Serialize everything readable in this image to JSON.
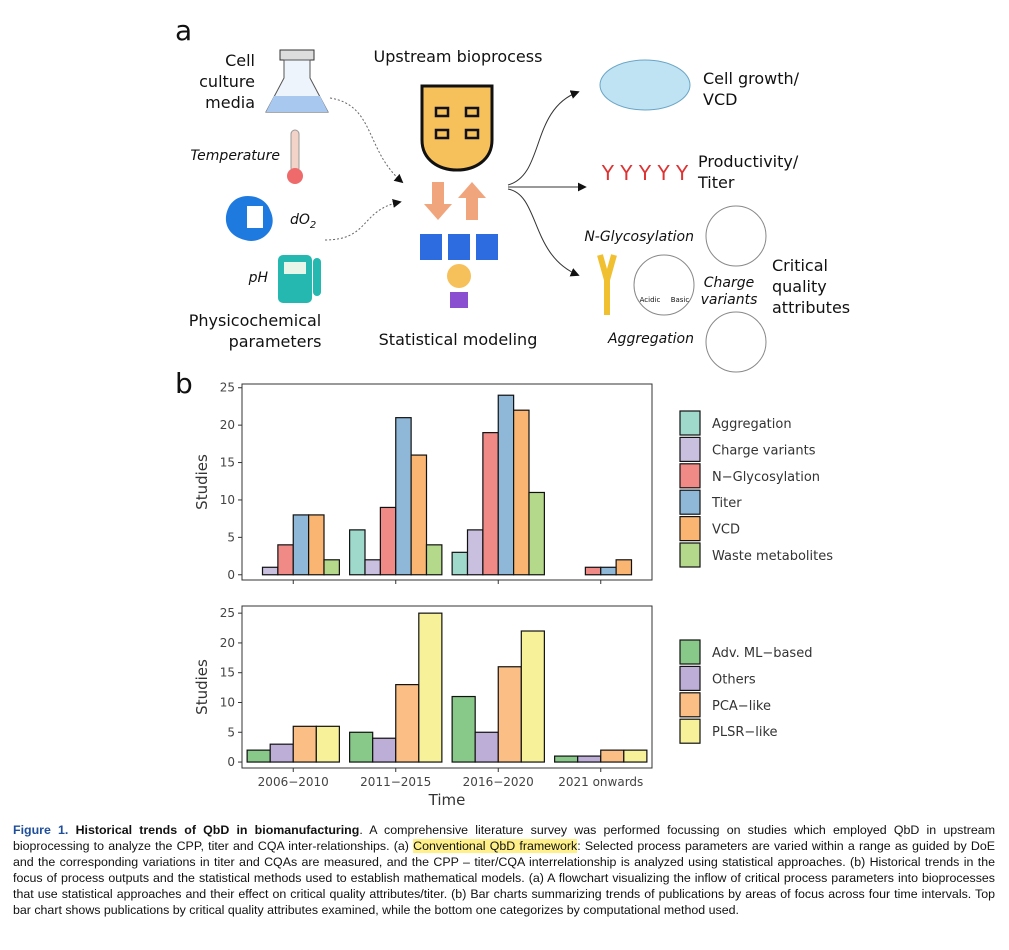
{
  "panel_a": {
    "label": "a",
    "media_lines": [
      "Cell",
      "culture",
      "media"
    ],
    "temperature": "Temperature",
    "do2": {
      "text": "dO",
      "sub": "2"
    },
    "ph": "pH",
    "physico_lines": [
      "Physicochemical",
      "parameters"
    ],
    "upstream": "Upstream bioprocess",
    "modeling": "Statistical modeling",
    "cell_growth_lines": [
      "Cell growth/",
      "VCD"
    ],
    "productivity_lines": [
      "Productivity/",
      "Titer"
    ],
    "glycosylation": "N-Glycosylation",
    "charge_lines": [
      "Charge",
      "variants"
    ],
    "aggregation": "Aggregation",
    "cqa_lines": [
      "Critical",
      "quality",
      "attributes"
    ],
    "acidic": "Acidic",
    "basic": "Basic"
  },
  "panel_b_label": "b",
  "chart_data": [
    {
      "type": "bar",
      "y_label": "Studies",
      "ylim": [
        -0.7,
        25.5
      ],
      "yticks": [
        0,
        5,
        10,
        15,
        20,
        25
      ],
      "series": [
        {
          "name": "Aggregation",
          "color": "#9fd9cc",
          "values": [
            0,
            6,
            3,
            0
          ]
        },
        {
          "name": "Charge variants",
          "color": "#c9bfdf",
          "values": [
            1,
            2,
            6,
            0
          ]
        },
        {
          "name": "N−Glycosylation",
          "color": "#f08a86",
          "values": [
            4,
            9,
            19,
            1
          ]
        },
        {
          "name": "Titer",
          "color": "#8fb8d8",
          "values": [
            8,
            21,
            24,
            1
          ]
        },
        {
          "name": "VCD",
          "color": "#f9b571",
          "values": [
            8,
            16,
            22,
            2
          ]
        },
        {
          "name": "Waste metabolites",
          "color": "#b5d98a",
          "values": [
            2,
            4,
            11,
            0
          ]
        }
      ]
    },
    {
      "type": "bar",
      "y_label": "Studies",
      "x_label": "Time",
      "ylim": [
        -1,
        26.2
      ],
      "yticks": [
        0,
        5,
        10,
        15,
        20,
        25
      ],
      "categories": [
        "2006−2010",
        "2011−2015",
        "2016−2020",
        "2021 onwards"
      ],
      "series": [
        {
          "name": "Adv. ML−based",
          "color": "#88c98a",
          "values": [
            2,
            5,
            11,
            1
          ]
        },
        {
          "name": "Others",
          "color": "#bcaed6",
          "values": [
            3,
            4,
            5,
            1
          ]
        },
        {
          "name": "PCA−like",
          "color": "#fbbf85",
          "values": [
            6,
            13,
            16,
            2
          ]
        },
        {
          "name": "PLSR−like",
          "color": "#f7f29a",
          "values": [
            6,
            25,
            22,
            2
          ]
        }
      ]
    }
  ],
  "caption": {
    "label": "Figure 1.",
    "title": "Historical trends of QbD in biomanufacturing",
    "text1": ". A comprehensive literature survey was performed focussing on studies which employed QbD in upstream bioprocessing to analyze the CPP, titer and CQA inter-relationships. (a) ",
    "highlight": "Conventional QbD framework",
    "text2": ": Selected process parameters are varied within a range as guided by DoE and the corresponding variations in titer and CQAs are measured, and the CPP – titer/CQA interrelationship is analyzed using statistical approaches. (b) Historical trends in the focus of process outputs and the statistical methods used to establish mathematical models. (a) A flowchart visualizing the inflow of critical process parameters into bioprocesses that use statistical approaches and their effect on critical quality attributes/titer. (b) Bar charts summarizing trends of publications by areas of focus across four time intervals. Top bar chart shows publications by critical quality attributes examined, while the bottom one categorizes by computational method used."
  }
}
